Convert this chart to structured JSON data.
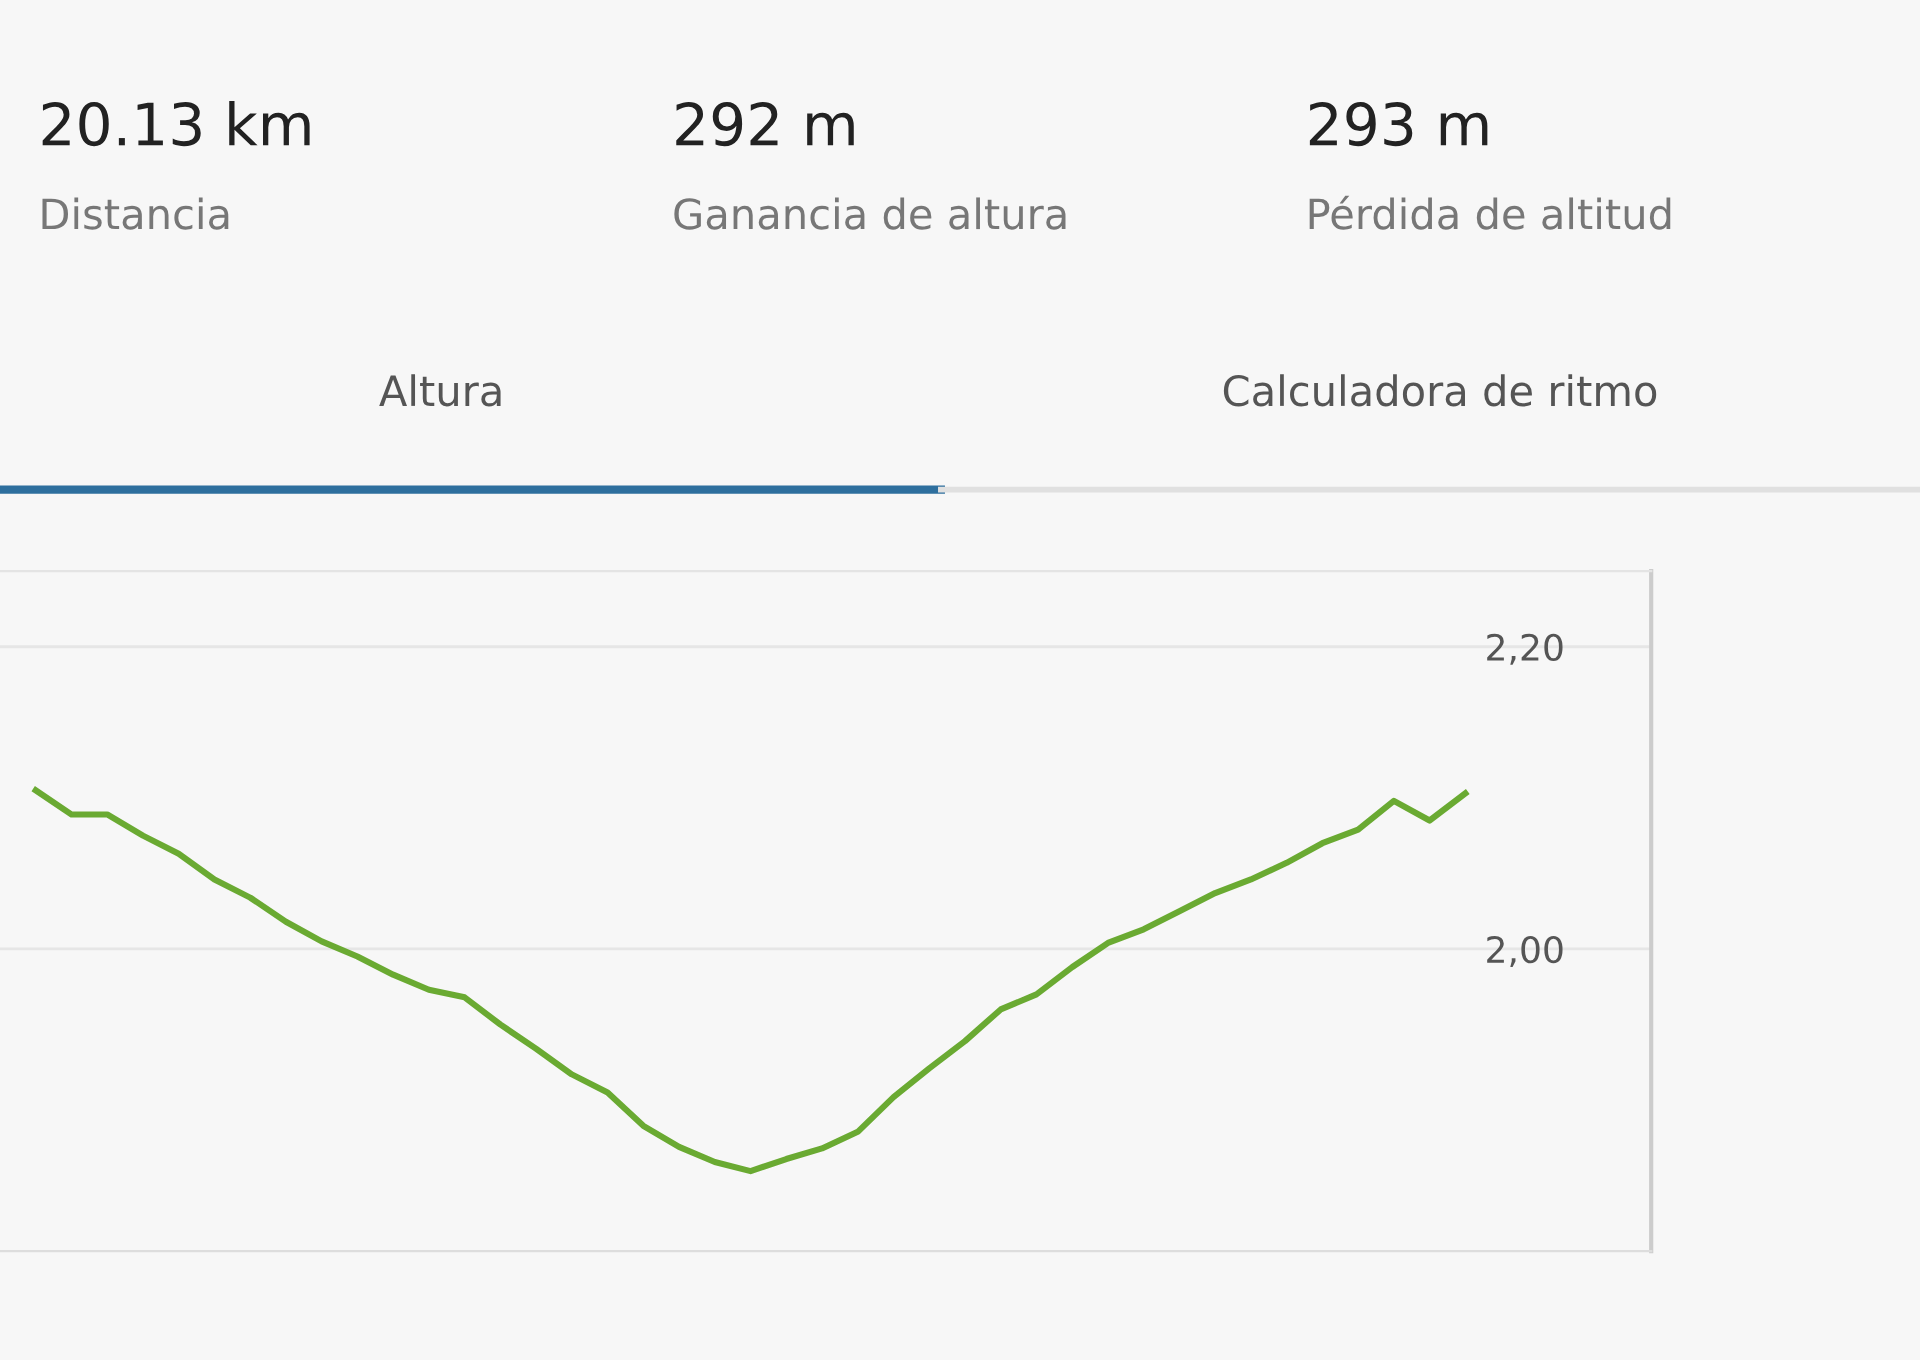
{
  "chart_data": {
    "type": "line",
    "annotations": [
      "20.13 km",
      "Distancia",
      "292 m",
      "Ganancia de altura",
      "293 m",
      "Pérdida de altitud",
      "Altura",
      "Calculadora de ritmo"
    ],
    "categories": [
      null,
      null,
      null,
      null,
      null,
      null,
      null,
      null,
      null,
      null,
      null,
      null,
      null,
      null,
      null,
      null,
      null,
      null,
      null,
      null,
      null,
      null,
      null,
      null,
      null,
      null,
      null,
      null,
      null,
      null,
      null,
      null,
      null,
      null,
      null,
      null,
      null,
      null,
      null,
      null,
      null
    ],
    "series": [
      {
        "color": "#6aaa32",
        "values": [
          2.105,
          2.089,
          2.089,
          2.075,
          2.063,
          2.046,
          2.034,
          2.018,
          2.005,
          1.995,
          1.983,
          1.973,
          1.968,
          1.95,
          1.934,
          1.917,
          1.905,
          1.883,
          1.869,
          1.859,
          1.853,
          1.861,
          1.868,
          1.879,
          1.902,
          1.921,
          1.939,
          1.96,
          1.97,
          1.988,
          2.004,
          2.013,
          2.025,
          2.037,
          2.046,
          2.057,
          2.07,
          2.079,
          2.098,
          2.085,
          2.103
        ]
      }
    ],
    "ylim": [
      1.8,
      2.25
    ],
    "yticks": [
      {
        "value": 2.0,
        "label": "2,00"
      },
      {
        "value": 2.2,
        "label": "2,20"
      }
    ],
    "grid": "y",
    "legend": false,
    "marker": "none",
    "line_style": "solid"
  }
}
